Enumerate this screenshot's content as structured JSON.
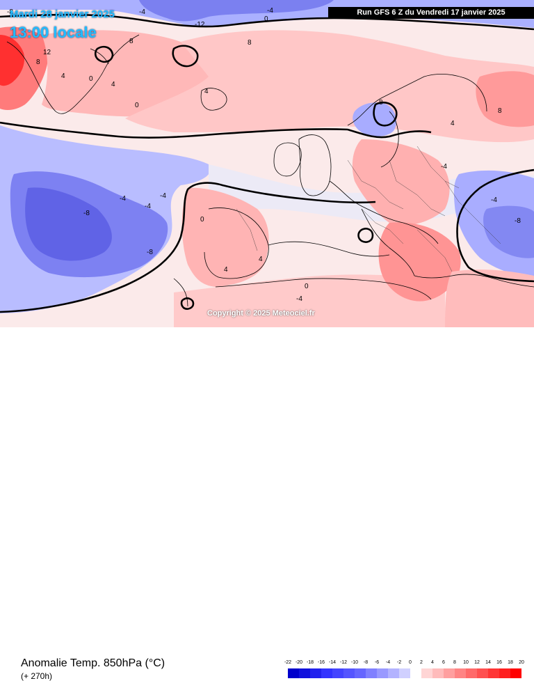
{
  "header": {
    "date": "Mardi 28 janvier 2025",
    "local_time": "13:00 locale",
    "run_info": "Run GFS 6 Z du Vendredi 17 janvier 2025"
  },
  "footer": {
    "parameter": "Anomalie Temp. 850hPa (°C)",
    "lead_time": "(+ 270h)",
    "copyright": "Copyright © 2025 Meteociel.fr"
  },
  "legend": {
    "values": [
      "-22",
      "-20",
      "-18",
      "-16",
      "-14",
      "-12",
      "-10",
      "-8",
      "-6",
      "-4",
      "-2",
      "0",
      "2",
      "4",
      "6",
      "8",
      "10",
      "12",
      "14",
      "16",
      "18",
      "20"
    ],
    "colors": [
      "#0000cc",
      "#1111dd",
      "#2222ee",
      "#3333ff",
      "#4444ff",
      "#5555ff",
      "#6666ff",
      "#8080ff",
      "#9999ff",
      "#b3b3ff",
      "#d0d0ff",
      "#ffffff",
      "#ffd5d5",
      "#ffbbbb",
      "#ff9f9f",
      "#ff8484",
      "#ff6a6a",
      "#ff5050",
      "#ff3535",
      "#ff1f1f",
      "#ff0000"
    ]
  },
  "contour_labels": [
    {
      "text": "-8"
    },
    {
      "text": "-4"
    },
    {
      "text": "-12"
    },
    {
      "text": "-4"
    },
    {
      "text": "0"
    },
    {
      "text": "12"
    },
    {
      "text": "8"
    },
    {
      "text": "4"
    },
    {
      "text": "0"
    },
    {
      "text": "8"
    },
    {
      "text": "4"
    },
    {
      "text": "8"
    },
    {
      "text": "4"
    },
    {
      "text": "8"
    },
    {
      "text": "0"
    },
    {
      "text": "-4"
    },
    {
      "text": "-8"
    },
    {
      "text": "-4"
    },
    {
      "text": "-8"
    },
    {
      "text": "-4"
    },
    {
      "text": "0"
    },
    {
      "text": "4"
    },
    {
      "text": "4"
    },
    {
      "text": "0"
    },
    {
      "text": "-4"
    },
    {
      "text": "-8"
    },
    {
      "text": "-4"
    },
    {
      "text": "4"
    },
    {
      "text": "8"
    },
    {
      "text": "-4"
    }
  ]
}
